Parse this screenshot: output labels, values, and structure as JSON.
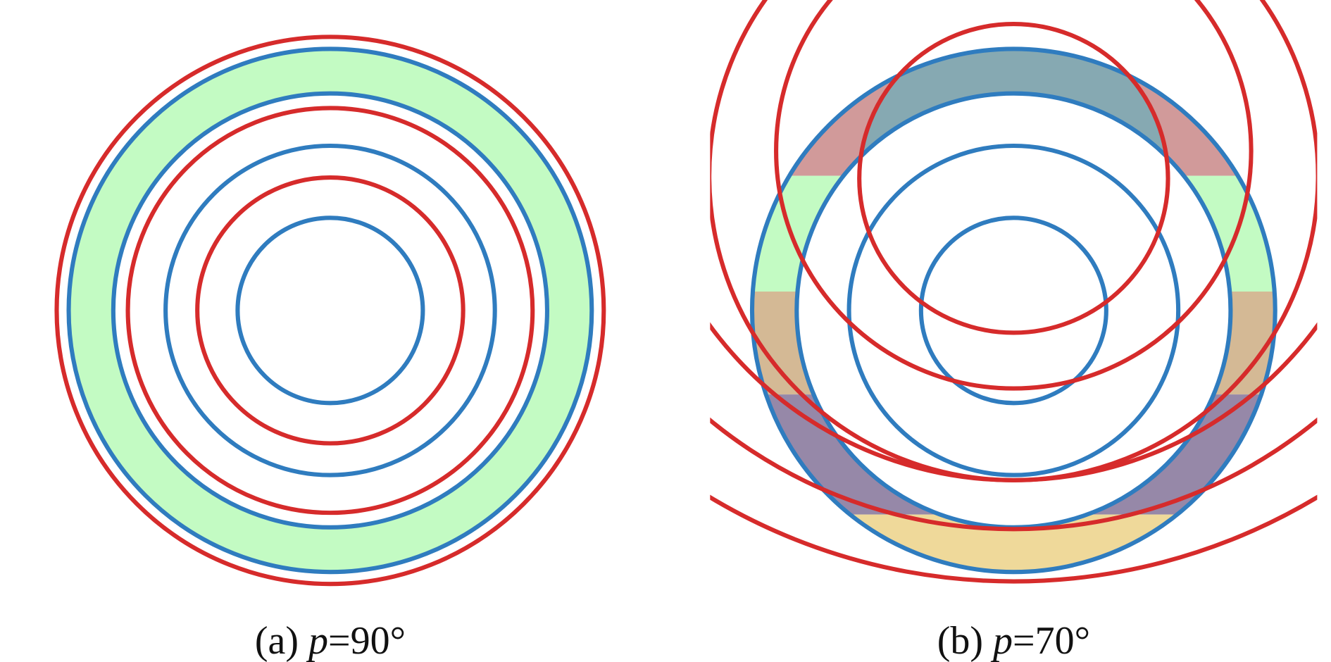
{
  "panels": [
    {
      "caption": {
        "label": "(a)",
        "variable": "p",
        "value": "=90°"
      }
    },
    {
      "caption": {
        "label": "(b)",
        "variable": "p",
        "value": "=70°"
      }
    }
  ]
}
